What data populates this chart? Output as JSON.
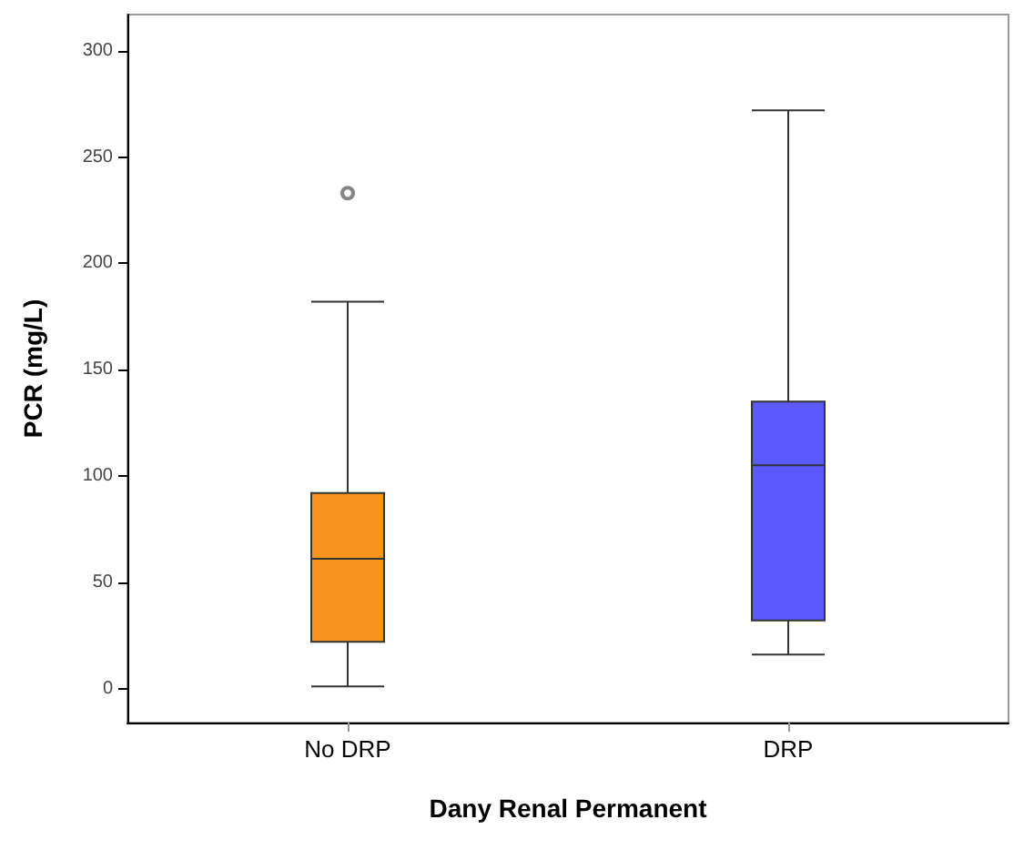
{
  "chart_data": {
    "type": "box",
    "xlabel": "Dany Renal Permanent",
    "ylabel": "PCR (mg/L)",
    "categories": [
      "No DRP",
      "DRP"
    ],
    "colors": [
      "#f7941d",
      "#5a5aff"
    ],
    "boxes": [
      {
        "low": 1,
        "q1": 22,
        "median": 61,
        "q3": 92,
        "high": 182,
        "outliers": [
          233
        ]
      },
      {
        "low": 16,
        "q1": 32,
        "median": 105,
        "q3": 135,
        "high": 272
      }
    ],
    "ylim": [
      -16,
      317
    ],
    "yticks": [
      0,
      50,
      100,
      150,
      200,
      250,
      300
    ]
  }
}
